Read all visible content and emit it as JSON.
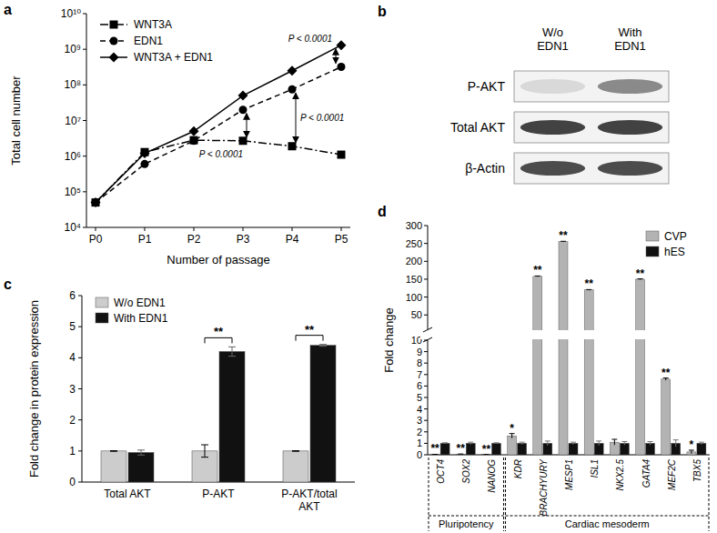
{
  "chart_data": [
    {
      "type": "line",
      "title": "a",
      "xlabel": "Number of passage",
      "ylabel": "Total cell number",
      "categories": [
        "P0",
        "P1",
        "P2",
        "P3",
        "P4",
        "P5"
      ],
      "series": [
        {
          "name": "WNT3A",
          "color": "#000000",
          "marker": "square",
          "line_style": "dashdot",
          "values": [
            50000,
            1300000,
            2800000,
            2700000,
            1900000,
            1100000
          ]
        },
        {
          "name": "EDN1",
          "color": "#000000",
          "marker": "circle",
          "line_style": "dashed",
          "values": [
            50000,
            600000,
            2700000,
            20000000,
            75000000,
            320000000
          ]
        },
        {
          "name": "WNT3A + EDN1",
          "color": "#000000",
          "marker": "diamond",
          "line_style": "solid",
          "values": [
            50000,
            1200000,
            5000000,
            50000000,
            250000000,
            1300000000
          ]
        }
      ],
      "log": "y",
      "ylim": [
        10000,
        10000000000
      ],
      "yticks": [
        {
          "value": 10000,
          "label": "10⁴"
        },
        {
          "value": 100000,
          "label": "10⁵"
        },
        {
          "value": 1000000,
          "label": "10⁶"
        },
        {
          "value": 10000000,
          "label": "10⁷"
        },
        {
          "value": 100000000,
          "label": "10⁸"
        },
        {
          "value": 1000000000,
          "label": "10⁹"
        },
        {
          "value": 10000000000,
          "label": "10¹⁰"
        }
      ],
      "legend": "upper left",
      "grid": false,
      "comparisons": [
        {
          "category": "P3",
          "between": [
            "EDN1",
            "WNT3A"
          ],
          "text": "P < 0.0001"
        },
        {
          "category": "P4",
          "between": [
            "EDN1",
            "WNT3A"
          ],
          "text": "P < 0.0001"
        },
        {
          "category": "P5",
          "between": [
            "WNT3A + EDN1",
            "EDN1"
          ],
          "text": "P < 0.0001"
        }
      ]
    },
    {
      "type": "blot",
      "title": "b",
      "lanes": [
        "W/o EDN1",
        "With EDN1"
      ],
      "rows": [
        {
          "label": "P-AKT",
          "intensities": [
            0.12,
            0.5
          ]
        },
        {
          "label": "Total AKT",
          "intensities": [
            0.85,
            0.85
          ]
        },
        {
          "label": "β-Actin",
          "intensities": [
            0.8,
            0.8
          ]
        }
      ]
    },
    {
      "type": "bar",
      "title": "c",
      "ylabel": "Fold change in protein expression",
      "categories": [
        "Total AKT",
        "P-AKT",
        "P-AKT/total AKT"
      ],
      "series": [
        {
          "name": "W/o EDN1",
          "color": "#cccccc",
          "values": [
            1,
            1,
            1
          ],
          "errors": [
            0.01,
            0.2,
            0.01
          ]
        },
        {
          "name": "With EDN1",
          "color": "#111111",
          "values": [
            0.95,
            4.2,
            4.4
          ],
          "errors": [
            0.08,
            0.15,
            0.03
          ]
        }
      ],
      "ylim": [
        0,
        6
      ],
      "yticks": [
        0,
        1,
        2,
        3,
        4,
        5,
        6
      ],
      "legend": "upper left",
      "grid": false,
      "significance": [
        null,
        "**",
        "**"
      ]
    },
    {
      "type": "bar",
      "title": "d",
      "ylabel": "Fold change",
      "categories": [
        "OCT4",
        "SOX2",
        "NANOG",
        "KDR",
        "BRACHYURY",
        "MESP1",
        "ISL1",
        "NKX2.5",
        "GATA4",
        "MEF2C",
        "TBX5"
      ],
      "series": [
        {
          "name": "CVP",
          "color": "#b3b3b3",
          "values": [
            0.03,
            0.05,
            0.02,
            1.65,
            158,
            255,
            120,
            1.1,
            150,
            6.6,
            0.25
          ],
          "errors": [
            0.01,
            0.02,
            0.01,
            0.2,
            1,
            1,
            1,
            0.25,
            1,
            0.1,
            0.15
          ]
        },
        {
          "name": "hES",
          "color": "#111111",
          "values": [
            1,
            1,
            1,
            1,
            1,
            1,
            1,
            1,
            1,
            1,
            1
          ],
          "errors": [
            0.05,
            0.1,
            0.05,
            0.1,
            0.2,
            0.1,
            0.2,
            0.15,
            0.15,
            0.3,
            0.1
          ]
        }
      ],
      "ylim": [
        0,
        300
      ],
      "yticks": [
        0,
        1,
        2,
        3,
        4,
        5,
        6,
        7,
        8,
        9,
        10,
        50,
        100,
        150,
        200,
        250,
        300
      ],
      "ybreak": 10,
      "legend": "upper right",
      "grid": false,
      "significance": [
        "**",
        "**",
        "**",
        "*",
        "**",
        "**",
        "**",
        null,
        "**",
        "**",
        "*"
      ],
      "groups": [
        {
          "label": "Pluripotency",
          "categories": [
            "OCT4",
            "SOX2",
            "NANOG"
          ]
        },
        {
          "label": "Cardiac mesoderm",
          "categories": [
            "KDR",
            "BRACHYURY",
            "MESP1",
            "ISL1",
            "NKX2.5",
            "GATA4",
            "MEF2C",
            "TBX5"
          ]
        }
      ]
    }
  ]
}
